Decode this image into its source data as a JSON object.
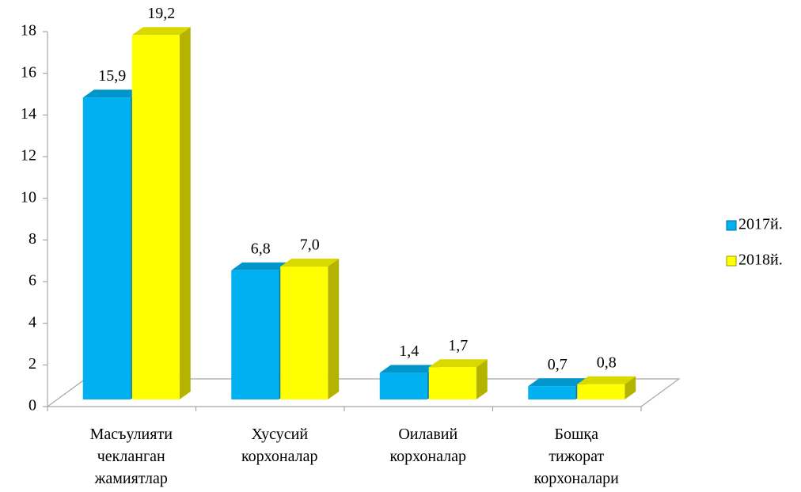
{
  "chart_data": {
    "type": "bar3d",
    "categories": [
      "Масъулияти чекланган жамиятлар",
      "Хусусий корхоналар",
      "Оилавий корхоналар",
      "Бошқа тижорат корхоналари"
    ],
    "series": [
      {
        "name": "2017й.",
        "color": "#00b0f0",
        "values": [
          15.9,
          6.8,
          1.4,
          0.7
        ],
        "value_labels": [
          "15,9",
          "6,8",
          "1,4",
          "0,7"
        ]
      },
      {
        "name": "2018й.",
        "color": "#ffff00",
        "values": [
          19.2,
          7.0,
          1.7,
          0.8
        ],
        "value_labels": [
          "19,2",
          "7,0",
          "1,7",
          "0,8"
        ]
      }
    ],
    "ylim": [
      0,
      18
    ],
    "yticks": [
      0,
      2,
      4,
      6,
      8,
      10,
      12,
      14,
      16,
      18
    ],
    "legend": "right"
  }
}
